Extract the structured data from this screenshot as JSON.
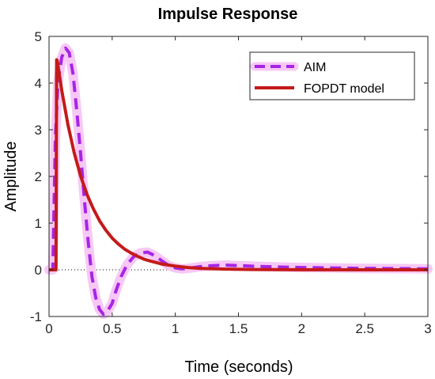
{
  "chart_data": {
    "type": "line",
    "title": "Impulse Response",
    "xlabel": "Time (seconds)",
    "ylabel": "Amplitude",
    "xlim": [
      0,
      3
    ],
    "ylim": [
      -1,
      5
    ],
    "x_ticks": [
      "0",
      "0.5",
      "1",
      "1.5",
      "2",
      "2.5",
      "3"
    ],
    "y_ticks": [
      "-1",
      "0",
      "1",
      "2",
      "3",
      "4",
      "5"
    ],
    "grid": false,
    "legend_position": "top-right",
    "zero_line": {
      "y": 0,
      "style": "dotted"
    },
    "series": [
      {
        "name": "AIM",
        "style": "dashed",
        "color": "#a625e6",
        "glow_color": "#f7c8f5",
        "x": [
          0,
          0.03,
          0.05,
          0.07,
          0.1,
          0.13,
          0.16,
          0.19,
          0.22,
          0.25,
          0.28,
          0.31,
          0.34,
          0.37,
          0.4,
          0.43,
          0.46,
          0.5,
          0.53,
          0.57,
          0.62,
          0.67,
          0.72,
          0.78,
          0.84,
          0.9,
          0.95,
          1.0,
          1.05,
          1.1,
          1.2,
          1.3,
          1.4,
          1.5,
          1.7,
          2.0,
          2.5,
          3.0
        ],
        "y": [
          0,
          0,
          2.8,
          4.0,
          4.55,
          4.75,
          4.65,
          4.2,
          3.4,
          2.5,
          1.5,
          0.6,
          -0.15,
          -0.6,
          -0.85,
          -0.95,
          -0.9,
          -0.72,
          -0.45,
          -0.15,
          0.12,
          0.28,
          0.36,
          0.38,
          0.3,
          0.18,
          0.09,
          0.04,
          0.02,
          0.03,
          0.07,
          0.09,
          0.1,
          0.09,
          0.07,
          0.05,
          0.03,
          0.02
        ]
      },
      {
        "name": "FOPDT model",
        "style": "solid",
        "color": "#c41a1a",
        "x": [
          0,
          0.055,
          0.06,
          0.065,
          0.1,
          0.15,
          0.2,
          0.25,
          0.3,
          0.35,
          0.4,
          0.45,
          0.5,
          0.55,
          0.6,
          0.65,
          0.7,
          0.75,
          0.8,
          0.9,
          1.0,
          1.1,
          1.2,
          1.4,
          1.6,
          2.0,
          2.5,
          3.0
        ],
        "y": [
          0,
          0,
          4.5,
          4.48,
          3.85,
          3.1,
          2.5,
          2.01,
          1.62,
          1.31,
          1.05,
          0.85,
          0.68,
          0.55,
          0.44,
          0.36,
          0.29,
          0.23,
          0.19,
          0.12,
          0.08,
          0.05,
          0.03,
          0.015,
          0.006,
          0.001,
          0,
          0
        ]
      }
    ]
  }
}
